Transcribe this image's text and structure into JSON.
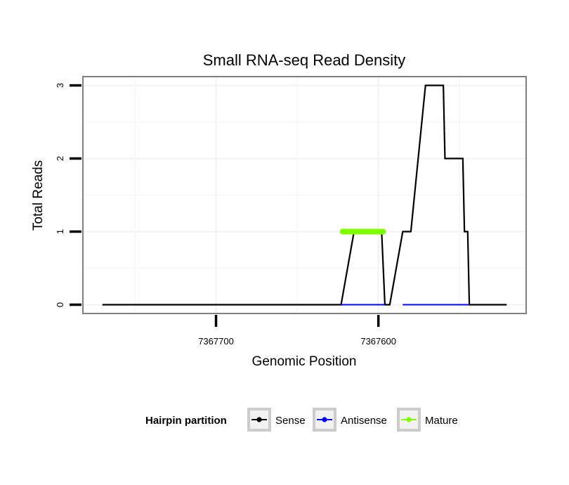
{
  "chart_data": {
    "type": "line",
    "title": "Small RNA-seq Read Density",
    "xlabel": "Genomic Position",
    "ylabel": "Total Reads",
    "x_reversed": true,
    "xlim": [
      7367782,
      7367509
    ],
    "ylim": [
      -0.12,
      3.12
    ],
    "x_ticks": [
      7367700,
      7367600
    ],
    "x_tick_labels": [
      "7367700",
      "7367600"
    ],
    "y_ticks": [
      0,
      1,
      2,
      3
    ],
    "y_tick_labels": [
      "0",
      "1",
      "2",
      "3"
    ],
    "grid": true,
    "legend_position": "bottom",
    "legend_title": "Hairpin partition",
    "series": [
      {
        "name": "Sense",
        "color": "#000000",
        "x": [
          7367770,
          7367623,
          7367615,
          7367598,
          7367596,
          7367593,
          7367585,
          7367580,
          7367571,
          7367570,
          7367560,
          7367559,
          7367548,
          7367547,
          7367545,
          7367544,
          7367521
        ],
        "y": [
          0,
          0,
          1,
          1,
          0,
          0,
          1,
          1,
          3,
          3,
          3,
          2,
          2,
          1,
          1,
          0,
          0
        ]
      },
      {
        "name": "Antisense",
        "color": "#0000ff",
        "segments": [
          [
            7367623,
            7367596
          ],
          [
            7367585,
            7367544
          ]
        ],
        "y": [
          0,
          0
        ]
      },
      {
        "name": "Mature",
        "color": "#7fff00",
        "x_range": [
          7367622,
          7367597
        ],
        "y": 1
      }
    ]
  }
}
